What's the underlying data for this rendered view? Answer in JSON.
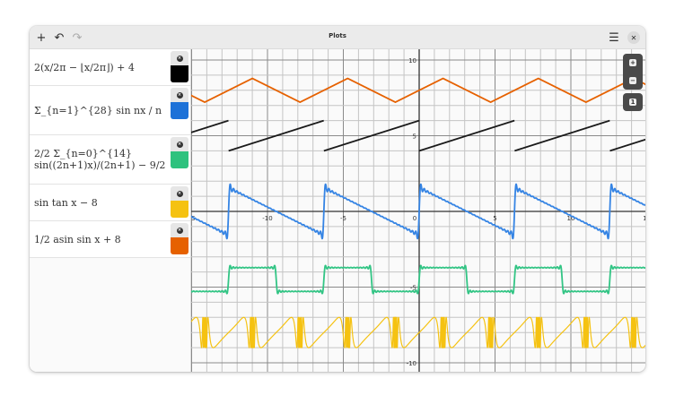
{
  "window": {
    "title": "Plots"
  },
  "header": {
    "add_icon": "plus-icon",
    "undo_icon": "undo-icon",
    "redo_icon": "redo-icon",
    "menu_icon": "hamburger-icon",
    "close_icon": "close-icon"
  },
  "functions": [
    {
      "expression": "2(x/2π − ⌊x/2π⌋) + 4",
      "color": "#000000",
      "plot_color": "#1a1a1a"
    },
    {
      "expression": "Σ_{n=1}^{28} sin nx / n",
      "color": "#1c71d8",
      "plot_color": "#3584e4"
    },
    {
      "expression": "2/2 Σ_{n=0}^{14} sin((2n+1)x)/(2n+1) − 9/2",
      "color": "#2ec27e",
      "plot_color": "#33c585"
    },
    {
      "expression": "sin tan x − 8",
      "color": "#f5c211",
      "plot_color": "#f5c211"
    },
    {
      "expression": "1/2 asin sin x + 8",
      "color": "#e66100",
      "plot_color": "#e66100"
    }
  ],
  "graph": {
    "xlim": [
      -15,
      15
    ],
    "ylim": [
      -10.6,
      10.6
    ],
    "x_ticks": [
      "5",
      "-10",
      "-5",
      "0",
      "5",
      "10",
      "1"
    ],
    "y_ticks": [
      "10",
      "5",
      "-5",
      "-10"
    ],
    "zoom_in_icon": "plus-icon",
    "zoom_out_icon": "minus-icon",
    "reset_icon": "one-to-one-icon"
  }
}
